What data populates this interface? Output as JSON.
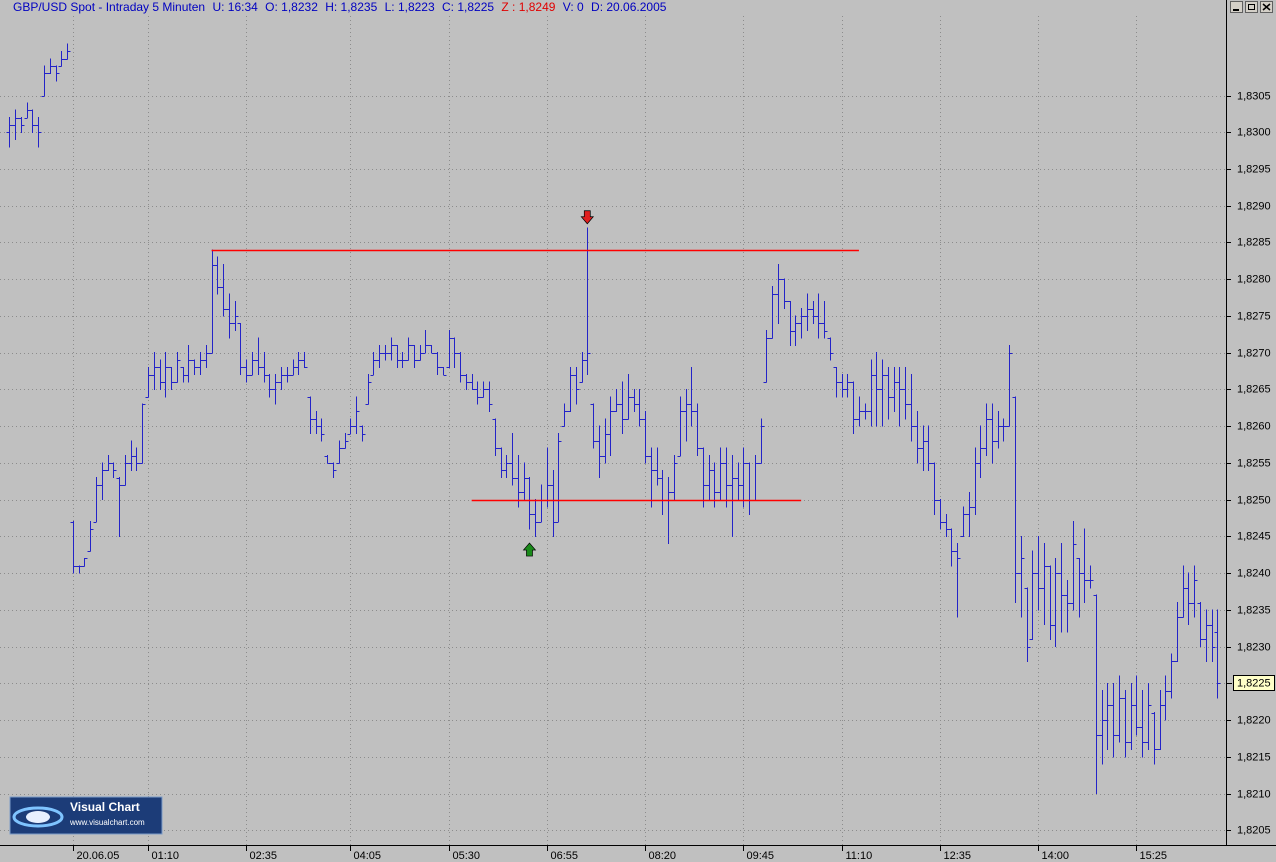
{
  "header": {
    "title": "GBP/USD Spot - Intraday 5 Minuten",
    "fields": [
      "U: 16:34",
      "O: 1,8232",
      "H: 1,8235",
      "L: 1,8223",
      "C: 1,8225"
    ],
    "alert_field": "Z : 1,8249",
    "trailing_fields": [
      "V: 0",
      "D: 20.06.2005"
    ]
  },
  "logo": {
    "name": "Visual Chart",
    "url": "www.visualchart.com"
  },
  "chart_data": {
    "type": "ohlc",
    "x": [
      "23:05",
      "23:10",
      "23:15",
      "23:20",
      "23:25",
      "23:30",
      "23:35",
      "23:40",
      "23:45",
      "23:50",
      "23:55",
      "00:05",
      "00:10",
      "00:15",
      "00:20",
      "00:25",
      "00:30",
      "00:35",
      "00:40",
      "00:45",
      "00:50",
      "00:55",
      "01:00",
      "01:05",
      "01:10",
      "01:15",
      "01:20",
      "01:25",
      "01:30",
      "01:35",
      "01:40",
      "01:45",
      "01:50",
      "01:55",
      "02:00",
      "02:05",
      "02:10",
      "02:15",
      "02:20",
      "02:25",
      "02:30",
      "02:35",
      "02:40",
      "02:45",
      "02:50",
      "02:55",
      "03:00",
      "03:05",
      "03:10",
      "03:15",
      "03:20",
      "03:25",
      "03:30",
      "03:35",
      "03:40",
      "03:45",
      "03:50",
      "03:55",
      "04:00",
      "04:05",
      "04:10",
      "04:15",
      "04:20",
      "04:25",
      "04:30",
      "04:35",
      "04:40",
      "04:45",
      "04:50",
      "04:55",
      "05:00",
      "05:05",
      "05:10",
      "05:15",
      "05:20",
      "05:25",
      "05:30",
      "05:35",
      "05:40",
      "05:45",
      "05:50",
      "05:55",
      "06:00",
      "06:05",
      "06:10",
      "06:15",
      "06:20",
      "06:25",
      "06:30",
      "06:35",
      "06:40",
      "06:45",
      "06:50",
      "06:55",
      "07:00",
      "07:05",
      "07:10",
      "07:15",
      "07:20",
      "07:25",
      "07:30",
      "07:35",
      "07:40",
      "07:45",
      "07:50",
      "07:55",
      "08:00",
      "08:05",
      "08:10",
      "08:15",
      "08:20",
      "08:25",
      "08:30",
      "08:35",
      "08:40",
      "08:45",
      "08:50",
      "08:55",
      "09:00",
      "09:05",
      "09:10",
      "09:15",
      "09:20",
      "09:25",
      "09:30",
      "09:35",
      "09:40",
      "09:45",
      "09:50",
      "09:55",
      "10:00",
      "10:05",
      "10:10",
      "10:15",
      "10:20",
      "10:25",
      "10:30",
      "10:35",
      "10:40",
      "10:45",
      "10:50",
      "10:55",
      "11:00",
      "11:05",
      "11:10",
      "11:15",
      "11:20",
      "11:25",
      "11:30",
      "11:35",
      "11:40",
      "11:45",
      "11:50",
      "11:55",
      "12:00",
      "12:05",
      "12:10",
      "12:15",
      "12:20",
      "12:25",
      "12:30",
      "12:35",
      "12:40",
      "12:45",
      "12:50",
      "12:55",
      "13:00",
      "13:05",
      "13:10",
      "13:15",
      "13:20",
      "13:25",
      "13:30",
      "13:35",
      "13:40",
      "13:45",
      "13:50",
      "13:55",
      "14:00",
      "14:05",
      "14:10",
      "14:15",
      "14:20",
      "14:25",
      "14:30",
      "14:35",
      "14:40",
      "14:45",
      "14:50",
      "14:55",
      "15:00",
      "15:05",
      "15:10",
      "15:15",
      "15:20",
      "15:25",
      "15:30",
      "15:35",
      "15:40",
      "15:45",
      "15:50",
      "15:55",
      "16:00",
      "16:05",
      "16:10",
      "16:15",
      "16:20",
      "16:25",
      "16:30",
      "16:35"
    ],
    "open": [
      1.83,
      1.8301,
      1.8302,
      1.8302,
      1.8303,
      1.8301,
      1.8305,
      1.8308,
      1.8309,
      1.8309,
      1.831,
      1.8247,
      1.8241,
      1.8241,
      1.8243,
      1.8247,
      1.8252,
      1.8254,
      1.8255,
      1.8253,
      1.8252,
      1.8255,
      1.8256,
      1.8255,
      1.8264,
      1.8267,
      1.8268,
      1.8266,
      1.8268,
      1.8266,
      1.8268,
      1.8267,
      1.8269,
      1.8268,
      1.8269,
      1.827,
      1.8282,
      1.8279,
      1.8276,
      1.8274,
      1.8274,
      1.8268,
      1.8267,
      1.8269,
      1.8268,
      1.8267,
      1.8265,
      1.8266,
      1.8267,
      1.8267,
      1.8268,
      1.8269,
      1.8264,
      1.8261,
      1.826,
      1.8256,
      1.8255,
      1.8255,
      1.8257,
      1.8259,
      1.826,
      1.826,
      1.8263,
      1.8267,
      1.8269,
      1.827,
      1.827,
      1.8271,
      1.8269,
      1.8269,
      1.8271,
      1.8269,
      1.827,
      1.8271,
      1.827,
      1.8268,
      1.8268,
      1.8272,
      1.827,
      1.8267,
      1.8266,
      1.8265,
      1.8264,
      1.8265,
      1.8261,
      1.8257,
      1.8254,
      1.8255,
      1.8253,
      1.8251,
      1.8253,
      1.8248,
      1.8247,
      1.825,
      1.8252,
      1.8247,
      1.826,
      1.8262,
      1.8267,
      1.8266,
      1.8269,
      1.8263,
      1.8258,
      1.8256,
      1.8259,
      1.8262,
      1.8263,
      1.8261,
      1.8264,
      1.8263,
      1.8261,
      1.8256,
      1.8254,
      1.8253,
      1.825,
      1.8251,
      1.8256,
      1.8262,
      1.8263,
      1.8262,
      1.8257,
      1.8252,
      1.8254,
      1.8251,
      1.8255,
      1.8252,
      1.8253,
      1.8252,
      1.8255,
      1.825,
      1.8255,
      1.8266,
      1.8272,
      1.8278,
      1.828,
      1.8277,
      1.8273,
      1.8274,
      1.8275,
      1.8276,
      1.8275,
      1.8274,
      1.8272,
      1.8268,
      1.8266,
      1.8265,
      1.8266,
      1.8261,
      1.8262,
      1.8262,
      1.8267,
      1.8265,
      1.8267,
      1.8264,
      1.8266,
      1.8265,
      1.8263,
      1.826,
      1.8257,
      1.8258,
      1.8255,
      1.825,
      1.8247,
      1.8246,
      1.8243,
      1.8245,
      1.8248,
      1.8249,
      1.8255,
      1.8257,
      1.8261,
      1.8258,
      1.826,
      1.826,
      1.8264,
      1.824,
      1.8238,
      1.8231,
      1.824,
      1.8238,
      1.8241,
      1.8233,
      1.824,
      1.8237,
      1.8236,
      1.8242,
      1.824,
      1.8239,
      1.8237,
      1.8218,
      1.822,
      1.8222,
      1.8218,
      1.8223,
      1.8217,
      1.8222,
      1.8219,
      1.8217,
      1.8221,
      1.8216,
      1.8222,
      1.8224,
      1.8228,
      1.8234,
      1.8238,
      1.8236,
      1.8236,
      1.8231,
      1.8233,
      1.8232
    ],
    "high": [
      1.8302,
      1.8303,
      1.8302,
      1.8304,
      1.8303,
      1.8302,
      1.8309,
      1.831,
      1.8309,
      1.8311,
      1.8312,
      1.8247,
      1.8241,
      1.8242,
      1.8247,
      1.8253,
      1.8255,
      1.8256,
      1.8255,
      1.8253,
      1.8256,
      1.8258,
      1.8257,
      1.8263,
      1.8268,
      1.827,
      1.8269,
      1.827,
      1.8268,
      1.827,
      1.8268,
      1.8271,
      1.8269,
      1.827,
      1.8271,
      1.8284,
      1.8283,
      1.8282,
      1.8278,
      1.8277,
      1.8274,
      1.8269,
      1.827,
      1.8272,
      1.827,
      1.8267,
      1.8267,
      1.8268,
      1.8268,
      1.8269,
      1.827,
      1.827,
      1.8264,
      1.8262,
      1.8261,
      1.8256,
      1.8255,
      1.8258,
      1.8259,
      1.8261,
      1.8264,
      1.826,
      1.8267,
      1.827,
      1.8271,
      1.8271,
      1.8272,
      1.8271,
      1.827,
      1.8272,
      1.8271,
      1.8271,
      1.8273,
      1.8271,
      1.827,
      1.8268,
      1.8273,
      1.8272,
      1.827,
      1.8267,
      1.8267,
      1.8266,
      1.8266,
      1.8266,
      1.8261,
      1.8257,
      1.8256,
      1.8259,
      1.8256,
      1.8255,
      1.8253,
      1.825,
      1.8252,
      1.8257,
      1.8254,
      1.8259,
      1.8263,
      1.8268,
      1.8268,
      1.827,
      1.8287,
      1.8263,
      1.826,
      1.8261,
      1.8264,
      1.8265,
      1.8266,
      1.8267,
      1.8265,
      1.8265,
      1.8262,
      1.8257,
      1.8257,
      1.8254,
      1.8253,
      1.8256,
      1.8264,
      1.8265,
      1.8268,
      1.8263,
      1.8257,
      1.8256,
      1.8255,
      1.8257,
      1.8257,
      1.8256,
      1.8255,
      1.8257,
      1.8255,
      1.8256,
      1.8261,
      1.8273,
      1.8279,
      1.8282,
      1.828,
      1.8277,
      1.8275,
      1.8276,
      1.8278,
      1.8277,
      1.8278,
      1.8277,
      1.8272,
      1.8268,
      1.8267,
      1.8267,
      1.8266,
      1.8264,
      1.8263,
      1.8269,
      1.827,
      1.8269,
      1.8268,
      1.8268,
      1.8268,
      1.8268,
      1.8267,
      1.8262,
      1.826,
      1.826,
      1.8255,
      1.825,
      1.8248,
      1.8246,
      1.8244,
      1.8249,
      1.8251,
      1.8257,
      1.826,
      1.8263,
      1.8263,
      1.8262,
      1.8261,
      1.8271,
      1.8264,
      1.8245,
      1.8238,
      1.8243,
      1.8245,
      1.8244,
      1.8241,
      1.8242,
      1.8244,
      1.8239,
      1.8247,
      1.8242,
      1.8246,
      1.8241,
      1.8237,
      1.8224,
      1.8225,
      1.8225,
      1.8226,
      1.8224,
      1.8225,
      1.8226,
      1.8224,
      1.8225,
      1.8221,
      1.8224,
      1.8226,
      1.8229,
      1.8236,
      1.8241,
      1.824,
      1.8241,
      1.8236,
      1.8235,
      1.8235,
      1.8235
    ],
    "low": [
      1.8298,
      1.8299,
      1.83,
      1.8302,
      1.83,
      1.8298,
      1.8305,
      1.8308,
      1.8307,
      1.8309,
      1.831,
      1.824,
      1.824,
      1.8241,
      1.8243,
      1.8247,
      1.825,
      1.8254,
      1.8253,
      1.8245,
      1.8252,
      1.8254,
      1.8254,
      1.8255,
      1.8264,
      1.8265,
      1.8265,
      1.8264,
      1.8265,
      1.8266,
      1.8266,
      1.8266,
      1.8267,
      1.8267,
      1.8268,
      1.827,
      1.8278,
      1.8275,
      1.8272,
      1.8273,
      1.8267,
      1.8266,
      1.8267,
      1.8267,
      1.8266,
      1.8264,
      1.8263,
      1.8265,
      1.8266,
      1.8267,
      1.8267,
      1.8268,
      1.8259,
      1.8259,
      1.8258,
      1.8255,
      1.8253,
      1.8255,
      1.8257,
      1.8259,
      1.8259,
      1.8258,
      1.8263,
      1.8267,
      1.8268,
      1.8269,
      1.8269,
      1.8268,
      1.8268,
      1.8269,
      1.8268,
      1.8269,
      1.827,
      1.827,
      1.8267,
      1.8267,
      1.8268,
      1.8268,
      1.8266,
      1.8265,
      1.8265,
      1.8263,
      1.8264,
      1.8262,
      1.8256,
      1.8253,
      1.8253,
      1.8252,
      1.8249,
      1.825,
      1.8246,
      1.8245,
      1.8247,
      1.8249,
      1.8245,
      1.8247,
      1.826,
      1.8262,
      1.8263,
      1.8266,
      1.8267,
      1.8257,
      1.8253,
      1.8255,
      1.8256,
      1.8262,
      1.8259,
      1.8261,
      1.8262,
      1.826,
      1.8255,
      1.8249,
      1.8252,
      1.8248,
      1.8244,
      1.825,
      1.8256,
      1.8258,
      1.826,
      1.8256,
      1.8249,
      1.825,
      1.8249,
      1.825,
      1.8249,
      1.8245,
      1.825,
      1.8249,
      1.8248,
      1.825,
      1.8255,
      1.8266,
      1.8272,
      1.8274,
      1.8276,
      1.8271,
      1.8271,
      1.8272,
      1.8273,
      1.8274,
      1.8272,
      1.8272,
      1.8269,
      1.8264,
      1.8264,
      1.8264,
      1.8259,
      1.826,
      1.8261,
      1.826,
      1.826,
      1.826,
      1.8261,
      1.8262,
      1.826,
      1.8261,
      1.8258,
      1.8255,
      1.8254,
      1.8254,
      1.8248,
      1.8246,
      1.8245,
      1.8241,
      1.8234,
      1.8245,
      1.8245,
      1.8248,
      1.8253,
      1.8256,
      1.8255,
      1.8257,
      1.8258,
      1.826,
      1.8236,
      1.8234,
      1.8228,
      1.8231,
      1.8235,
      1.8233,
      1.8231,
      1.823,
      1.8232,
      1.8232,
      1.8235,
      1.8234,
      1.8236,
      1.8238,
      1.821,
      1.8214,
      1.8216,
      1.8215,
      1.8217,
      1.8215,
      1.8216,
      1.8218,
      1.8215,
      1.8216,
      1.8214,
      1.8216,
      1.822,
      1.8223,
      1.8228,
      1.8234,
      1.8233,
      1.8234,
      1.823,
      1.8228,
      1.8228,
      1.8223
    ],
    "close": [
      1.8301,
      1.8302,
      1.8301,
      1.8303,
      1.8301,
      1.83,
      1.8308,
      1.8309,
      1.8308,
      1.831,
      1.8311,
      1.8241,
      1.8241,
      1.8242,
      1.8246,
      1.8252,
      1.8254,
      1.8255,
      1.8254,
      1.8252,
      1.8255,
      1.8256,
      1.8255,
      1.8263,
      1.8267,
      1.8268,
      1.8266,
      1.8268,
      1.8266,
      1.8269,
      1.8267,
      1.8269,
      1.8268,
      1.8269,
      1.827,
      1.8282,
      1.8279,
      1.8276,
      1.8274,
      1.8275,
      1.8268,
      1.8267,
      1.8269,
      1.8268,
      1.8267,
      1.8265,
      1.8266,
      1.8267,
      1.8267,
      1.8268,
      1.8269,
      1.8268,
      1.8261,
      1.826,
      1.8259,
      1.8255,
      1.8254,
      1.8257,
      1.8258,
      1.826,
      1.8262,
      1.8259,
      1.8266,
      1.8269,
      1.827,
      1.827,
      1.8271,
      1.8269,
      1.8269,
      1.8271,
      1.8269,
      1.827,
      1.8271,
      1.827,
      1.8268,
      1.8267,
      1.8272,
      1.827,
      1.8267,
      1.8266,
      1.8265,
      1.8264,
      1.8265,
      1.8263,
      1.8257,
      1.8254,
      1.8255,
      1.8253,
      1.8251,
      1.8253,
      1.8248,
      1.8247,
      1.825,
      1.8252,
      1.8247,
      1.8258,
      1.8262,
      1.8267,
      1.8265,
      1.8269,
      1.827,
      1.8258,
      1.8256,
      1.8259,
      1.8262,
      1.8263,
      1.8261,
      1.8264,
      1.8263,
      1.8261,
      1.8256,
      1.8254,
      1.8253,
      1.825,
      1.8251,
      1.8255,
      1.8262,
      1.8263,
      1.8262,
      1.8257,
      1.8252,
      1.8254,
      1.8251,
      1.8255,
      1.8252,
      1.8253,
      1.8252,
      1.8255,
      1.825,
      1.8255,
      1.826,
      1.8272,
      1.8278,
      1.828,
      1.8277,
      1.8273,
      1.8274,
      1.8275,
      1.8276,
      1.8275,
      1.8274,
      1.8273,
      1.827,
      1.8266,
      1.8265,
      1.8266,
      1.8261,
      1.8262,
      1.8262,
      1.8267,
      1.8265,
      1.8267,
      1.8264,
      1.8266,
      1.8265,
      1.8263,
      1.826,
      1.8257,
      1.8258,
      1.8255,
      1.825,
      1.8247,
      1.8246,
      1.8243,
      1.8242,
      1.8248,
      1.8249,
      1.8255,
      1.8257,
      1.8261,
      1.8258,
      1.826,
      1.826,
      1.827,
      1.824,
      1.8242,
      1.823,
      1.824,
      1.8238,
      1.8241,
      1.8233,
      1.824,
      1.8237,
      1.8236,
      1.8244,
      1.824,
      1.8239,
      1.8239,
      1.8218,
      1.822,
      1.8222,
      1.8218,
      1.8223,
      1.8217,
      1.8222,
      1.8219,
      1.8217,
      1.8222,
      1.8216,
      1.8222,
      1.8224,
      1.8228,
      1.8234,
      1.8238,
      1.8236,
      1.8239,
      1.8231,
      1.8233,
      1.823,
      1.8225
    ],
    "color": "#2323c8",
    "ylim": [
      1.8203,
      1.8318
    ],
    "yticks": [
      {
        "value": 1.8205,
        "label": "1,8205"
      },
      {
        "value": 1.821,
        "label": "1,8210"
      },
      {
        "value": 1.8215,
        "label": "1,8215"
      },
      {
        "value": 1.822,
        "label": "1,8220"
      },
      {
        "value": 1.8225,
        "label": "1,8225"
      },
      {
        "value": 1.823,
        "label": "1,8230"
      },
      {
        "value": 1.8235,
        "label": "1,8235"
      },
      {
        "value": 1.824,
        "label": "1,8240"
      },
      {
        "value": 1.8245,
        "label": "1,8245"
      },
      {
        "value": 1.825,
        "label": "1,8250"
      },
      {
        "value": 1.8255,
        "label": "1,8255"
      },
      {
        "value": 1.826,
        "label": "1,8260"
      },
      {
        "value": 1.8265,
        "label": "1,8265"
      },
      {
        "value": 1.827,
        "label": "1,8270"
      },
      {
        "value": 1.8275,
        "label": "1,8275"
      },
      {
        "value": 1.828,
        "label": "1,8280"
      },
      {
        "value": 1.8285,
        "label": "1,8285"
      },
      {
        "value": 1.829,
        "label": "1,8290"
      },
      {
        "value": 1.8295,
        "label": "1,8295"
      },
      {
        "value": 1.83,
        "label": "1,8300"
      },
      {
        "value": 1.8305,
        "label": "1,8305"
      }
    ],
    "xticks": [
      {
        "value": "00:05",
        "label": "20.06.05"
      },
      "01:10",
      "02:35",
      "04:05",
      "05:30",
      "06:55",
      "08:20",
      "09:45",
      "11:10",
      "12:35",
      "14:00",
      "15:25"
    ],
    "grid": true,
    "last_price": {
      "value": 1.8225,
      "label": "1,8225"
    },
    "lines": [
      {
        "y": 1.8284,
        "from": "02:05",
        "to": "11:25",
        "color": "#ff0000"
      },
      {
        "y": 1.825,
        "from": "05:50",
        "to": "10:35",
        "color": "#ff0000"
      }
    ],
    "markers": [
      {
        "x": "07:30",
        "direction": "down",
        "color": "#e02020"
      },
      {
        "x": "06:40",
        "direction": "up",
        "color": "#1a8a1a"
      }
    ]
  }
}
